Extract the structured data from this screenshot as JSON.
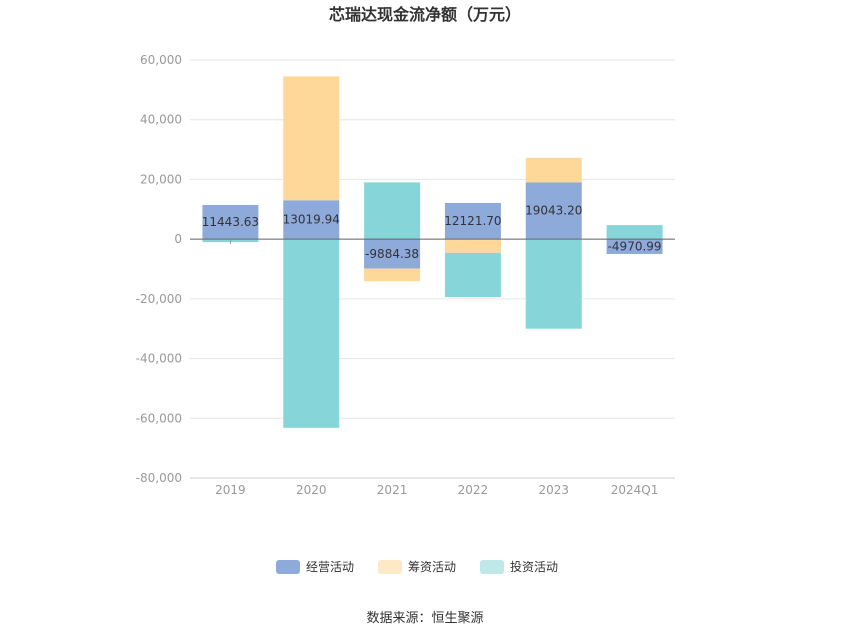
{
  "chart_data": {
    "type": "bar",
    "stacked": true,
    "title": "芯瑞达现金流净额（万元）",
    "categories": [
      "2019",
      "2020",
      "2021",
      "2022",
      "2023",
      "2024Q1"
    ],
    "ylim": [
      -80000,
      60000
    ],
    "yticks": [
      60000,
      40000,
      20000,
      0,
      -20000,
      -40000,
      -60000,
      -80000
    ],
    "ytick_labels": [
      "60,000",
      "40,000",
      "20,000",
      "0",
      "-20,000",
      "-40,000",
      "-60,000",
      "-80,000"
    ],
    "grid": true,
    "legend_position": "bottom",
    "series": [
      {
        "name": "经营活动",
        "color": "#8eaadb",
        "values": [
          11443.63,
          13019.94,
          -9884.38,
          12121.7,
          19043.2,
          -4970.99
        ]
      },
      {
        "name": "筹资活动",
        "color": "#fdd898",
        "values": [
          0,
          41500,
          -4200,
          -4600,
          8200,
          0
        ]
      },
      {
        "name": "投资活动",
        "color": "#86d6d9",
        "values": [
          -1000,
          -63200,
          19000,
          -14800,
          -30000,
          4700
        ]
      }
    ],
    "data_labels": [
      "11443.63",
      "13019.94",
      "-9884.38",
      "12121.70",
      "19043.20",
      "-4970.99"
    ],
    "legend_colors": [
      "#8eaadb",
      "#fde9c5",
      "#bfe8e9"
    ]
  },
  "source": "数据来源：恒生聚源"
}
